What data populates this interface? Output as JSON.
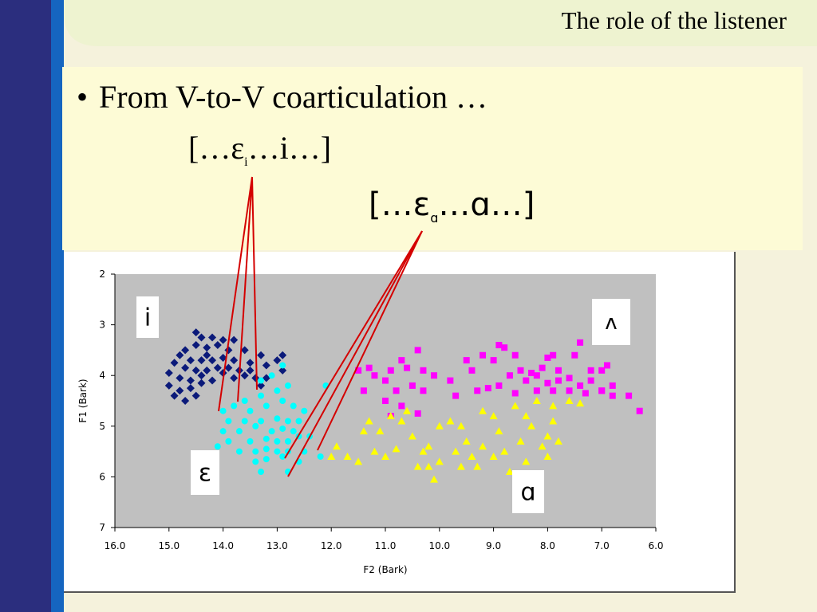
{
  "slide": {
    "title": "The role of the listener",
    "bullet_symbol": "•",
    "bullet_text": "From V-to-V coarticulation …",
    "ipa_line1_pre": "[…ε",
    "ipa_line1_sub": "i",
    "ipa_line1_post": "…i…]",
    "ipa_line2_pre": "[…ε",
    "ipa_line2_sub": "ɑ",
    "ipa_line2_post": "…ɑ…]",
    "colors": {
      "left_bar": "#2b2e7e",
      "left_bar_accent": "#1565c0",
      "header": "#eef3d0",
      "text_box": "#fdfbd6",
      "pointer_lines": "#d40000"
    }
  },
  "chart_data": {
    "type": "scatter",
    "xlabel": "F2 (Bark)",
    "ylabel": "F1 (Bark)",
    "xlim": [
      16,
      6
    ],
    "ylim": [
      2,
      7
    ],
    "x_reversed": true,
    "y_reversed": true,
    "x_ticks": [
      "16.0",
      "15.0",
      "14.0",
      "13.0",
      "12.0",
      "11.0",
      "10.0",
      "9.0",
      "8.0",
      "7.0",
      "6.0"
    ],
    "y_ticks": [
      "2",
      "3",
      "4",
      "5",
      "6",
      "7"
    ],
    "plot_background": "#c0c0c0",
    "vowel_labels": [
      {
        "label": "i",
        "series": "i"
      },
      {
        "label": "ε",
        "series": "ε"
      },
      {
        "label": "ʌ",
        "series": "ʌ"
      },
      {
        "label": "ɑ",
        "series": "ɑ"
      }
    ],
    "series": [
      {
        "name": "i",
        "marker": "diamond",
        "color": "#0b1a7a",
        "points": [
          [
            14.5,
            3.15
          ],
          [
            14.4,
            3.25
          ],
          [
            14.2,
            3.25
          ],
          [
            14.0,
            3.3
          ],
          [
            13.8,
            3.3
          ],
          [
            14.7,
            3.5
          ],
          [
            14.5,
            3.4
          ],
          [
            14.3,
            3.45
          ],
          [
            14.1,
            3.4
          ],
          [
            13.9,
            3.5
          ],
          [
            13.6,
            3.5
          ],
          [
            14.8,
            3.6
          ],
          [
            14.6,
            3.7
          ],
          [
            14.4,
            3.7
          ],
          [
            14.2,
            3.7
          ],
          [
            14.0,
            3.65
          ],
          [
            13.8,
            3.7
          ],
          [
            13.5,
            3.75
          ],
          [
            13.3,
            3.6
          ],
          [
            14.9,
            3.75
          ],
          [
            14.7,
            3.85
          ],
          [
            14.5,
            3.9
          ],
          [
            14.3,
            3.9
          ],
          [
            14.1,
            3.85
          ],
          [
            13.9,
            3.85
          ],
          [
            13.7,
            3.9
          ],
          [
            13.5,
            3.9
          ],
          [
            13.2,
            3.8
          ],
          [
            13.0,
            3.7
          ],
          [
            12.9,
            3.6
          ],
          [
            15.0,
            3.95
          ],
          [
            14.8,
            4.05
          ],
          [
            14.6,
            4.1
          ],
          [
            14.4,
            4.0
          ],
          [
            14.2,
            4.1
          ],
          [
            14.0,
            3.95
          ],
          [
            13.8,
            4.05
          ],
          [
            13.6,
            4.0
          ],
          [
            13.4,
            4.05
          ],
          [
            13.2,
            4.05
          ],
          [
            15.0,
            4.2
          ],
          [
            14.8,
            4.3
          ],
          [
            14.6,
            4.25
          ],
          [
            14.4,
            4.15
          ],
          [
            14.9,
            4.4
          ],
          [
            14.7,
            4.5
          ],
          [
            14.5,
            4.4
          ],
          [
            13.3,
            4.2
          ],
          [
            12.9,
            3.9
          ],
          [
            14.3,
            3.6
          ]
        ]
      },
      {
        "name": "ε",
        "marker": "circle",
        "color": "#00ffff",
        "points": [
          [
            12.9,
            3.8
          ],
          [
            13.1,
            4.0
          ],
          [
            13.3,
            4.1
          ],
          [
            12.8,
            4.2
          ],
          [
            13.0,
            4.3
          ],
          [
            13.3,
            4.4
          ],
          [
            13.6,
            4.5
          ],
          [
            13.8,
            4.6
          ],
          [
            14.0,
            4.7
          ],
          [
            13.5,
            4.7
          ],
          [
            13.2,
            4.6
          ],
          [
            12.9,
            4.5
          ],
          [
            12.7,
            4.6
          ],
          [
            12.5,
            4.7
          ],
          [
            13.9,
            4.9
          ],
          [
            13.6,
            4.9
          ],
          [
            13.3,
            4.9
          ],
          [
            13.0,
            4.85
          ],
          [
            12.8,
            4.9
          ],
          [
            12.6,
            4.9
          ],
          [
            14.0,
            5.1
          ],
          [
            13.7,
            5.1
          ],
          [
            13.4,
            5.0
          ],
          [
            13.1,
            5.1
          ],
          [
            12.9,
            5.05
          ],
          [
            12.7,
            5.1
          ],
          [
            13.9,
            5.3
          ],
          [
            13.5,
            5.3
          ],
          [
            13.2,
            5.25
          ],
          [
            13.0,
            5.3
          ],
          [
            12.8,
            5.3
          ],
          [
            12.6,
            5.2
          ],
          [
            14.1,
            5.4
          ],
          [
            13.7,
            5.5
          ],
          [
            13.4,
            5.5
          ],
          [
            13.2,
            5.45
          ],
          [
            13.0,
            5.5
          ],
          [
            12.8,
            5.5
          ],
          [
            12.5,
            5.5
          ],
          [
            13.4,
            5.7
          ],
          [
            13.2,
            5.65
          ],
          [
            12.9,
            5.6
          ],
          [
            12.6,
            5.7
          ],
          [
            13.3,
            5.9
          ],
          [
            12.8,
            5.9
          ],
          [
            12.2,
            5.6
          ],
          [
            12.1,
            4.2
          ],
          [
            12.4,
            5.2
          ]
        ]
      },
      {
        "name": "ʌ",
        "marker": "square",
        "color": "#ff00ff",
        "points": [
          [
            11.5,
            3.9
          ],
          [
            11.3,
            3.85
          ],
          [
            11.2,
            4.0
          ],
          [
            10.9,
            3.9
          ],
          [
            10.7,
            3.7
          ],
          [
            10.6,
            3.85
          ],
          [
            10.4,
            3.5
          ],
          [
            10.3,
            3.9
          ],
          [
            10.1,
            4.0
          ],
          [
            11.0,
            4.1
          ],
          [
            10.8,
            4.3
          ],
          [
            10.5,
            4.2
          ],
          [
            10.3,
            4.3
          ],
          [
            11.4,
            4.3
          ],
          [
            11.0,
            4.5
          ],
          [
            10.7,
            4.6
          ],
          [
            10.4,
            4.75
          ],
          [
            10.9,
            4.8
          ],
          [
            9.5,
            3.7
          ],
          [
            9.4,
            3.9
          ],
          [
            9.2,
            3.6
          ],
          [
            9.0,
            3.7
          ],
          [
            8.8,
            3.45
          ],
          [
            8.6,
            3.6
          ],
          [
            8.5,
            3.9
          ],
          [
            8.3,
            3.95
          ],
          [
            8.1,
            3.85
          ],
          [
            7.9,
            3.6
          ],
          [
            7.8,
            3.9
          ],
          [
            7.5,
            3.6
          ],
          [
            7.4,
            3.35
          ],
          [
            7.2,
            3.9
          ],
          [
            7.0,
            3.9
          ],
          [
            6.9,
            3.8
          ],
          [
            8.7,
            4.0
          ],
          [
            8.4,
            4.1
          ],
          [
            8.2,
            4.0
          ],
          [
            8.0,
            4.15
          ],
          [
            7.8,
            4.1
          ],
          [
            7.6,
            4.05
          ],
          [
            7.4,
            4.2
          ],
          [
            7.2,
            4.1
          ],
          [
            7.0,
            4.3
          ],
          [
            6.8,
            4.2
          ],
          [
            9.7,
            4.4
          ],
          [
            9.3,
            4.3
          ],
          [
            8.9,
            4.2
          ],
          [
            8.6,
            4.35
          ],
          [
            8.2,
            4.3
          ],
          [
            7.9,
            4.3
          ],
          [
            7.6,
            4.3
          ],
          [
            7.3,
            4.35
          ],
          [
            6.8,
            4.4
          ],
          [
            6.5,
            4.4
          ],
          [
            9.1,
            4.25
          ],
          [
            8.0,
            3.65
          ],
          [
            6.3,
            4.7
          ],
          [
            7.0,
            4.3
          ],
          [
            8.9,
            3.4
          ],
          [
            9.8,
            4.1
          ]
        ]
      },
      {
        "name": "ɑ",
        "marker": "triangle",
        "color": "#ffff00",
        "points": [
          [
            11.7,
            5.6
          ],
          [
            11.5,
            5.7
          ],
          [
            11.2,
            5.5
          ],
          [
            11.0,
            5.6
          ],
          [
            10.8,
            5.45
          ],
          [
            11.3,
            4.9
          ],
          [
            11.1,
            5.1
          ],
          [
            10.9,
            4.8
          ],
          [
            10.7,
            4.9
          ],
          [
            10.5,
            5.2
          ],
          [
            10.3,
            5.5
          ],
          [
            10.2,
            5.8
          ],
          [
            10.1,
            6.05
          ],
          [
            10.0,
            5.7
          ],
          [
            10.2,
            5.4
          ],
          [
            9.8,
            4.9
          ],
          [
            9.6,
            5.0
          ],
          [
            9.5,
            5.3
          ],
          [
            9.4,
            5.6
          ],
          [
            9.3,
            5.8
          ],
          [
            9.2,
            4.7
          ],
          [
            9.0,
            4.8
          ],
          [
            8.9,
            5.1
          ],
          [
            8.8,
            5.5
          ],
          [
            8.7,
            5.9
          ],
          [
            8.5,
            5.3
          ],
          [
            8.4,
            4.8
          ],
          [
            8.3,
            5.0
          ],
          [
            8.1,
            5.4
          ],
          [
            8.0,
            5.2
          ],
          [
            7.9,
            4.9
          ],
          [
            7.8,
            5.3
          ],
          [
            9.6,
            5.8
          ],
          [
            9.2,
            5.4
          ],
          [
            10.6,
            4.7
          ],
          [
            11.4,
            5.1
          ],
          [
            11.9,
            5.4
          ],
          [
            12.0,
            5.6
          ],
          [
            10.0,
            5.0
          ],
          [
            8.6,
            4.6
          ],
          [
            8.2,
            4.5
          ],
          [
            7.9,
            4.6
          ],
          [
            8.4,
            5.7
          ],
          [
            7.6,
            4.5
          ],
          [
            9.0,
            5.6
          ],
          [
            10.4,
            5.8
          ],
          [
            8.0,
            5.6
          ],
          [
            7.4,
            4.55
          ],
          [
            9.7,
            5.5
          ]
        ]
      }
    ]
  }
}
